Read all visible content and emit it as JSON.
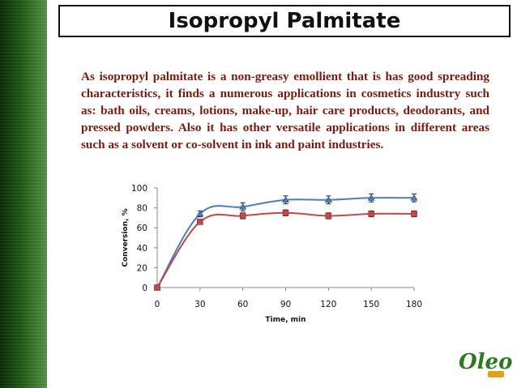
{
  "slide": {
    "title": "Isopropyl Palmitate",
    "body": "As isopropyl palmitate is a non-greasy emollient that is has good spreading characteristics, it finds a numerous applications in cosmetics industry such as: bath oils, creams, lotions, make-up, hair care products, deodorants, and pressed powders.  Also it has other versatile applications in  different areas such as a solvent or co-solvent in ink and paint industries.",
    "logo_text": "Oleo"
  },
  "colors": {
    "band": "#1f5a17",
    "body_text": "#7a1a10",
    "series_1": "#4a7ebb",
    "series_2": "#be4b48"
  },
  "chart_data": {
    "type": "line",
    "x": [
      0,
      30,
      60,
      90,
      120,
      150,
      180
    ],
    "xlim": [
      0,
      180
    ],
    "ylim": [
      0,
      100
    ],
    "xticks": [
      0,
      30,
      60,
      90,
      120,
      150,
      180
    ],
    "yticks": [
      0,
      20,
      40,
      60,
      80,
      100
    ],
    "xlabel": "Time, min",
    "ylabel": "Conversion, %",
    "grid": false,
    "series": [
      {
        "values": [
          0,
          74,
          81,
          88,
          88,
          90,
          90
        ],
        "errors": [
          0,
          3,
          4,
          4,
          4,
          4,
          4
        ],
        "color": "#4a7ebb",
        "marker": "triangle"
      },
      {
        "values": [
          0,
          66,
          72,
          75,
          72,
          74,
          74
        ],
        "errors": [
          0,
          2,
          3,
          3,
          3,
          3,
          3
        ],
        "color": "#be4b48",
        "marker": "square"
      }
    ]
  }
}
